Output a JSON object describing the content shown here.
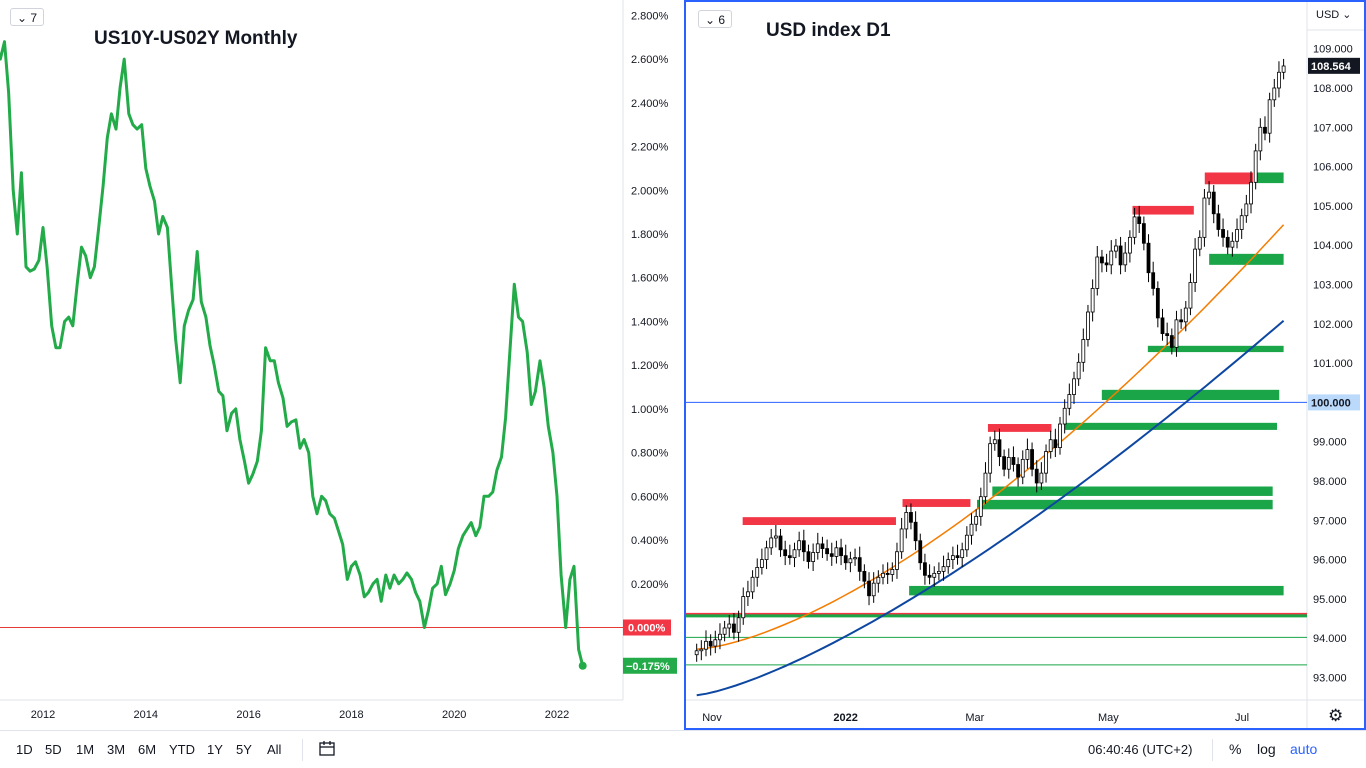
{
  "left_chart": {
    "badge": "7",
    "title": "US10Y-US02Y Monthly",
    "price_labels": [
      "2.800%",
      "2.600%",
      "2.400%",
      "2.200%",
      "2.000%",
      "1.800%",
      "1.600%",
      "1.400%",
      "1.200%",
      "1.000%",
      "0.800%",
      "0.600%",
      "0.400%",
      "0.200%"
    ],
    "time_labels": [
      "2012",
      "2014",
      "2016",
      "2018",
      "2020",
      "2022"
    ],
    "zero_label": "0.000%",
    "last_label": "−0.175%",
    "colors": {
      "line": "#22ab48",
      "zero_line": "#e53935",
      "zero_badge": "#f23645",
      "last_badge": "#22ab48"
    }
  },
  "right_chart": {
    "badge": "6",
    "title": "USD index D1",
    "currency_selector": "USD",
    "price_labels": [
      "109.000",
      "108.000",
      "107.000",
      "106.000",
      "105.000",
      "104.000",
      "103.000",
      "102.000",
      "101.000",
      "100.000",
      "99.000",
      "98.000",
      "97.000",
      "96.000",
      "95.000",
      "94.000",
      "93.000"
    ],
    "current_price": "108.564",
    "line_price": "100.000",
    "time_labels": [
      "Nov",
      "2022",
      "Mar",
      "May",
      "Jul"
    ],
    "colors": {
      "candle": "#000000",
      "ma_fast": "#f57c00",
      "ma_slow": "#0d47a1",
      "supply_zone": "#f23645",
      "demand_zone": "#1aa548",
      "hline": "#2962ff",
      "price_badge": "#131722"
    }
  },
  "bottom_bar": {
    "ranges": [
      "1D",
      "5D",
      "1M",
      "3M",
      "6M",
      "YTD",
      "1Y",
      "5Y",
      "All"
    ],
    "time": "06:40:46 (UTC+2)",
    "percent": "%",
    "log": "log",
    "auto": "auto",
    "icons": {
      "compare": "calendar-goto-icon",
      "settings": "gear-icon"
    }
  },
  "chart_data": [
    {
      "type": "line",
      "title": "US10Y-US02Y Monthly",
      "y_unit": "%",
      "ylim": [
        -0.3,
        2.9
      ],
      "x": [
        2011.0,
        2011.08,
        2011.17,
        2011.25,
        2011.33,
        2011.42,
        2011.5,
        2011.58,
        2011.67,
        2011.75,
        2011.83,
        2011.92,
        2012.0,
        2012.08,
        2012.17,
        2012.25,
        2012.33,
        2012.42,
        2012.5,
        2012.58,
        2012.67,
        2012.75,
        2012.83,
        2012.92,
        2013.0,
        2013.08,
        2013.17,
        2013.25,
        2013.33,
        2013.42,
        2013.5,
        2013.58,
        2013.67,
        2013.75,
        2013.83,
        2013.92,
        2014.0,
        2014.08,
        2014.17,
        2014.25,
        2014.33,
        2014.42,
        2014.5,
        2014.58,
        2014.67,
        2014.75,
        2014.83,
        2014.92,
        2015.0,
        2015.08,
        2015.17,
        2015.25,
        2015.33,
        2015.42,
        2015.5,
        2015.58,
        2015.67,
        2015.75,
        2015.83,
        2015.92,
        2016.0,
        2016.08,
        2016.17,
        2016.25,
        2016.33,
        2016.42,
        2016.5,
        2016.58,
        2016.67,
        2016.75,
        2016.83,
        2016.92,
        2017.0,
        2017.08,
        2017.17,
        2017.25,
        2017.33,
        2017.42,
        2017.5,
        2017.58,
        2017.67,
        2017.75,
        2017.83,
        2017.92,
        2018.0,
        2018.08,
        2018.17,
        2018.25,
        2018.33,
        2018.42,
        2018.5,
        2018.58,
        2018.67,
        2018.75,
        2018.83,
        2018.92,
        2019.0,
        2019.08,
        2019.17,
        2019.25,
        2019.33,
        2019.42,
        2019.5,
        2019.58,
        2019.67,
        2019.75,
        2019.83,
        2019.92,
        2020.0,
        2020.08,
        2020.17,
        2020.25,
        2020.33,
        2020.42,
        2020.5,
        2020.58,
        2020.67,
        2020.75,
        2020.83,
        2020.92,
        2021.0,
        2021.08,
        2021.17,
        2021.25,
        2021.33,
        2021.42,
        2021.5,
        2021.58,
        2021.67,
        2021.75,
        2021.83,
        2021.92,
        2022.0,
        2022.08,
        2022.17,
        2022.25,
        2022.33,
        2022.42,
        2022.5
      ],
      "y": [
        2.7,
        2.68,
        2.6,
        2.68,
        2.45,
        2.0,
        1.8,
        2.08,
        1.65,
        1.63,
        1.64,
        1.68,
        1.83,
        1.65,
        1.38,
        1.28,
        1.28,
        1.4,
        1.42,
        1.38,
        1.58,
        1.74,
        1.7,
        1.6,
        1.65,
        1.82,
        2.02,
        2.24,
        2.35,
        2.28,
        2.47,
        2.6,
        2.35,
        2.3,
        2.28,
        2.3,
        2.1,
        2.02,
        1.95,
        1.8,
        1.88,
        1.83,
        1.57,
        1.32,
        1.12,
        1.38,
        1.45,
        1.5,
        1.72,
        1.49,
        1.42,
        1.29,
        1.2,
        1.08,
        1.06,
        0.9,
        0.98,
        1.0,
        0.86,
        0.76,
        0.66,
        0.7,
        0.76,
        0.9,
        1.28,
        1.22,
        1.22,
        1.12,
        1.05,
        0.92,
        0.94,
        0.95,
        0.82,
        0.86,
        0.8,
        0.6,
        0.52,
        0.6,
        0.58,
        0.52,
        0.5,
        0.44,
        0.38,
        0.22,
        0.28,
        0.3,
        0.24,
        0.14,
        0.16,
        0.2,
        0.22,
        0.12,
        0.24,
        0.18,
        0.24,
        0.2,
        0.22,
        0.25,
        0.22,
        0.16,
        0.12,
        0.0,
        0.08,
        0.18,
        0.2,
        0.28,
        0.15,
        0.2,
        0.26,
        0.36,
        0.42,
        0.45,
        0.48,
        0.42,
        0.46,
        0.6,
        0.6,
        0.62,
        0.72,
        0.78,
        0.96,
        1.25,
        1.57,
        1.42,
        1.4,
        1.26,
        1.02,
        1.08,
        1.22,
        1.1,
        0.92,
        0.8,
        0.6,
        0.24,
        0.0,
        0.22,
        0.28,
        -0.1,
        -0.175
      ]
    },
    {
      "type": "candlestick",
      "title": "USD index D1",
      "ylim": [
        92.7,
        109.7
      ],
      "x_range": [
        "2021-10-25",
        "2022-07-20"
      ],
      "current_price": 108.564,
      "horizontal_line": 100.0,
      "supply_zones": [
        {
          "from": "2021-11-15",
          "to": "2022-01-24",
          "y0": 96.88,
          "y1": 97.08
        },
        {
          "from": "2022-01-27",
          "to": "2022-02-27",
          "y0": 97.34,
          "y1": 97.54
        },
        {
          "from": "2022-03-07",
          "to": "2022-04-05",
          "y0": 99.25,
          "y1": 99.45
        },
        {
          "from": "2022-05-12",
          "to": "2022-06-09",
          "y0": 104.78,
          "y1": 105.0
        },
        {
          "from": "2022-06-14",
          "to": "2022-07-06",
          "y0": 105.55,
          "y1": 105.85
        }
      ],
      "demand_zones": [
        {
          "from": "2022-01-30",
          "to": "2022-07-20",
          "y0": 95.09,
          "y1": 95.33
        },
        {
          "from": "2022-03-02",
          "to": "2022-07-15",
          "y0": 97.28,
          "y1": 97.52
        },
        {
          "from": "2022-03-09",
          "to": "2022-07-15",
          "y0": 97.62,
          "y1": 97.86
        },
        {
          "from": "2022-04-11",
          "to": "2022-07-17",
          "y0": 99.3,
          "y1": 99.48
        },
        {
          "from": "2022-04-28",
          "to": "2022-07-18",
          "y0": 100.06,
          "y1": 100.32
        },
        {
          "from": "2022-05-19",
          "to": "2022-07-20",
          "y0": 101.28,
          "y1": 101.44
        },
        {
          "from": "2022-06-16",
          "to": "2022-07-20",
          "y0": 103.5,
          "y1": 103.78
        },
        {
          "from": "2022-07-08",
          "to": "2022-07-20",
          "y0": 105.58,
          "y1": 105.85
        }
      ],
      "reference_lines": [
        94.62,
        94.02,
        93.32
      ],
      "close": [
        93.68,
        93.72,
        93.92,
        93.8,
        93.96,
        94.1,
        94.26,
        94.36,
        94.15,
        94.52,
        95.06,
        95.18,
        95.55,
        95.8,
        96.0,
        96.3,
        96.55,
        96.6,
        96.25,
        96.1,
        96.05,
        96.25,
        96.48,
        96.2,
        95.95,
        96.18,
        96.4,
        96.28,
        96.15,
        96.08,
        96.3,
        96.1,
        95.92,
        96.02,
        96.05,
        95.7,
        95.45,
        95.08,
        95.4,
        95.55,
        95.65,
        95.62,
        95.75,
        96.2,
        96.78,
        97.2,
        96.95,
        96.48,
        95.92,
        95.6,
        95.55,
        95.65,
        95.7,
        95.82,
        96.0,
        96.1,
        96.05,
        96.25,
        96.62,
        96.9,
        97.1,
        97.6,
        98.2,
        98.95,
        99.05,
        98.62,
        98.3,
        98.6,
        98.42,
        98.1,
        98.55,
        98.8,
        98.3,
        97.95,
        98.2,
        98.75,
        99.05,
        98.85,
        99.45,
        99.85,
        100.2,
        100.6,
        101.02,
        101.6,
        102.3,
        102.9,
        103.7,
        103.55,
        103.5,
        103.85,
        103.98,
        103.5,
        103.8,
        104.2,
        104.72,
        104.55,
        104.05,
        103.3,
        102.9,
        102.15,
        101.75,
        101.7,
        101.4,
        102.1,
        102.05,
        102.4,
        103.05,
        103.9,
        104.2,
        105.2,
        105.35,
        104.8,
        104.4,
        104.2,
        103.95,
        104.1,
        104.4,
        104.75,
        105.05,
        105.6,
        106.4,
        107.0,
        106.85,
        107.7,
        108.0,
        108.4,
        108.56
      ],
      "moving_averages": [
        {
          "name": "fast",
          "start": 93.72,
          "end": 104.52
        },
        {
          "name": "slow",
          "start": 92.55,
          "end": 102.08
        }
      ]
    }
  ]
}
